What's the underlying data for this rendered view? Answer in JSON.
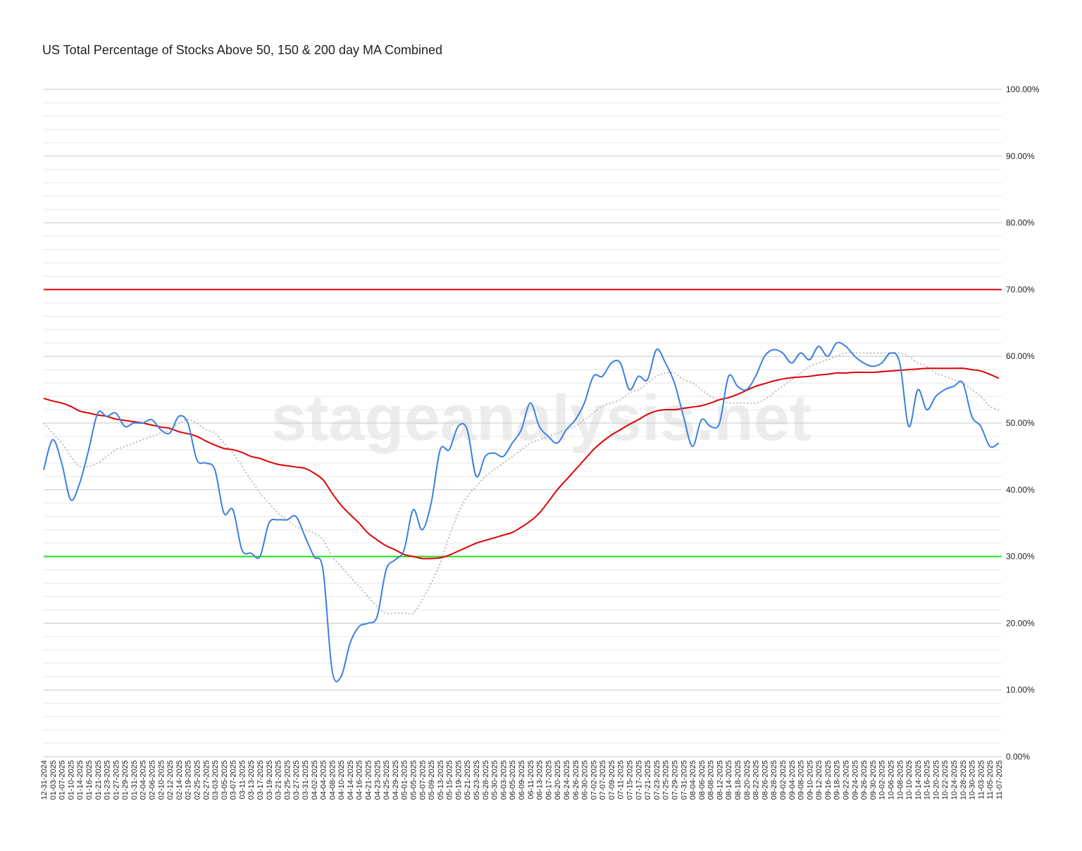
{
  "chart_data": {
    "type": "line",
    "title": "US Total Percentage of Stocks Above 50, 150 & 200 day MA Combined",
    "watermark": "stageanalysis.net",
    "categories": [
      "12-31-2024",
      "01-03-2025",
      "01-07-2025",
      "01-10-2025",
      "01-14-2025",
      "01-16-2025",
      "01-21-2025",
      "01-23-2025",
      "01-27-2025",
      "01-29-2025",
      "01-31-2025",
      "02-04-2025",
      "02-06-2025",
      "02-10-2025",
      "02-12-2025",
      "02-14-2025",
      "02-19-2025",
      "02-25-2025",
      "02-27-2025",
      "03-03-2025",
      "03-05-2025",
      "03-07-2025",
      "03-11-2025",
      "03-13-2025",
      "03-17-2025",
      "03-19-2025",
      "03-21-2025",
      "03-25-2025",
      "03-27-2025",
      "03-31-2025",
      "04-02-2025",
      "04-04-2025",
      "04-08-2025",
      "04-10-2025",
      "04-14-2025",
      "04-16-2025",
      "04-21-2025",
      "04-23-2025",
      "04-25-2025",
      "04-29-2025",
      "05-01-2025",
      "05-05-2025",
      "05-07-2025",
      "05-09-2025",
      "05-13-2025",
      "05-15-2025",
      "05-19-2025",
      "05-21-2025",
      "05-23-2025",
      "05-28-2025",
      "05-30-2025",
      "06-03-2025",
      "06-05-2025",
      "06-09-2025",
      "06-11-2025",
      "06-13-2025",
      "06-17-2025",
      "06-20-2025",
      "06-24-2025",
      "06-26-2025",
      "06-30-2025",
      "07-02-2025",
      "07-07-2025",
      "07-09-2025",
      "07-11-2025",
      "07-15-2025",
      "07-17-2025",
      "07-21-2025",
      "07-23-2025",
      "07-25-2025",
      "07-29-2025",
      "07-31-2025",
      "08-04-2025",
      "08-06-2025",
      "08-08-2025",
      "08-12-2025",
      "08-14-2025",
      "08-18-2025",
      "08-20-2025",
      "08-22-2025",
      "08-26-2025",
      "08-28-2025",
      "09-02-2025",
      "09-04-2025",
      "09-08-2025",
      "09-10-2025",
      "09-12-2025",
      "09-16-2025",
      "09-18-2025",
      "09-22-2025",
      "09-24-2025",
      "09-26-2025",
      "09-30-2025",
      "10-02-2025",
      "10-06-2025",
      "10-08-2025",
      "10-10-2025",
      "10-14-2025",
      "10-16-2025",
      "10-20-2025",
      "10-22-2025",
      "10-24-2025",
      "10-28-2025",
      "10-30-2025",
      "11-03-2025",
      "11-05-2025",
      "11-07-2025"
    ],
    "series": [
      {
        "color": "#bbbbbb",
        "dash": true,
        "values": [
          50,
          48.5,
          47,
          45,
          43.5,
          43.5,
          44,
          45,
          46,
          46.5,
          47,
          47.5,
          48,
          48.5,
          49,
          50,
          50.5,
          50,
          49,
          48.5,
          47,
          45.5,
          43.5,
          41.5,
          39.5,
          38,
          36.5,
          35.5,
          34.5,
          34,
          33.5,
          32.5,
          30,
          28.5,
          27,
          25.5,
          24,
          22.5,
          21.5,
          21.5,
          21.5,
          21.5,
          23.5,
          26,
          29,
          33,
          36.5,
          39,
          40.5,
          42,
          43,
          44,
          45,
          46,
          47,
          47.5,
          48,
          48.5,
          49,
          49.5,
          50.5,
          51.5,
          52.5,
          53,
          53.5,
          54.5,
          55,
          56,
          57,
          57.5,
          57.5,
          56.5,
          56,
          55,
          54,
          53.5,
          53,
          53,
          53,
          53,
          53.5,
          54.5,
          55.5,
          56.5,
          57.5,
          58.5,
          59,
          59.5,
          60,
          60.5,
          60.5,
          60.5,
          60.5,
          60.5,
          60.5,
          60.5,
          60,
          59,
          58.5,
          57.5,
          57,
          56.5,
          56,
          55,
          54,
          52.5,
          52
        ]
      },
      {
        "color": "#e00000",
        "values": [
          53.7,
          53.3,
          53,
          52.5,
          51.8,
          51.5,
          51.2,
          51,
          50.6,
          50.4,
          50.2,
          50,
          49.7,
          49.4,
          49.2,
          48.7,
          48.4,
          48,
          47.3,
          46.7,
          46.2,
          46,
          45.6,
          45,
          44.7,
          44.2,
          43.8,
          43.6,
          43.4,
          43.2,
          42.5,
          41.5,
          39.5,
          37.7,
          36.3,
          35,
          33.5,
          32.5,
          31.6,
          31,
          30.3,
          30,
          29.7,
          29.7,
          29.8,
          30.2,
          30.8,
          31.4,
          32,
          32.4,
          32.8,
          33.2,
          33.6,
          34.4,
          35.3,
          36.5,
          38.2,
          40,
          41.5,
          43,
          44.5,
          46,
          47.2,
          48.2,
          49,
          49.8,
          50.5,
          51.3,
          51.8,
          52,
          52,
          52.2,
          52.4,
          52.6,
          53,
          53.5,
          53.8,
          54.3,
          54.9,
          55.5,
          55.9,
          56.3,
          56.6,
          56.8,
          56.9,
          57,
          57.2,
          57.3,
          57.5,
          57.5,
          57.6,
          57.6,
          57.6,
          57.7,
          57.8,
          57.9,
          58,
          58.1,
          58.2,
          58.2,
          58.2,
          58.2,
          58.2,
          58,
          57.8,
          57.3,
          56.7
        ]
      },
      {
        "color": "#3a80e0",
        "values": [
          43,
          47.5,
          44,
          38.5,
          41,
          46,
          51.5,
          51,
          51.5,
          49.5,
          50,
          50,
          50.5,
          49,
          48.5,
          51,
          50,
          44.5,
          44,
          43,
          36.5,
          37,
          31,
          30.5,
          30,
          35,
          35.5,
          35.5,
          36,
          33,
          30,
          28,
          13,
          12,
          17,
          19.5,
          20,
          21,
          28,
          29.5,
          31,
          37,
          34,
          38,
          46,
          46,
          49.5,
          49,
          42,
          45,
          45.5,
          45,
          47,
          49,
          53,
          49.5,
          48,
          47,
          49,
          50.5,
          53,
          57,
          57,
          59,
          59,
          55,
          57,
          56.5,
          61,
          59,
          56,
          51,
          46.5,
          50.5,
          49.5,
          50,
          57,
          55.5,
          55,
          57,
          60,
          61,
          60.5,
          59,
          60.5,
          59.5,
          61.5,
          60,
          62,
          61.5,
          60,
          59,
          58.5,
          59,
          60.5,
          59,
          49.5,
          55,
          52,
          54,
          55,
          55.5,
          56,
          51,
          49.5,
          46.5,
          47
        ]
      }
    ],
    "reference_lines": [
      {
        "value": 70,
        "color": "#e00000"
      },
      {
        "value": 30,
        "color": "#22dd22"
      }
    ],
    "ylim": [
      0,
      100
    ],
    "yticks": [
      {
        "value": 0,
        "label": "0.00%"
      },
      {
        "value": 10,
        "label": "10.00%"
      },
      {
        "value": 20,
        "label": "20.00%"
      },
      {
        "value": 30,
        "label": "30.00%"
      },
      {
        "value": 40,
        "label": "40.00%"
      },
      {
        "value": 50,
        "label": "50.00%"
      },
      {
        "value": 60,
        "label": "60.00%"
      },
      {
        "value": 70,
        "label": "70.00%"
      },
      {
        "value": 80,
        "label": "80.00%"
      },
      {
        "value": 90,
        "label": "90.00%"
      },
      {
        "value": 100,
        "label": "100.00%"
      }
    ],
    "minor_yticks": [
      2,
      4,
      6,
      8,
      12,
      14,
      16,
      18,
      22,
      24,
      26,
      28,
      32,
      34,
      36,
      38,
      42,
      44,
      46,
      48,
      52,
      54,
      56,
      58,
      62,
      64,
      66,
      68,
      72,
      74,
      76,
      78,
      82,
      84,
      86,
      88,
      92,
      94,
      96,
      98
    ],
    "grid": true
  }
}
